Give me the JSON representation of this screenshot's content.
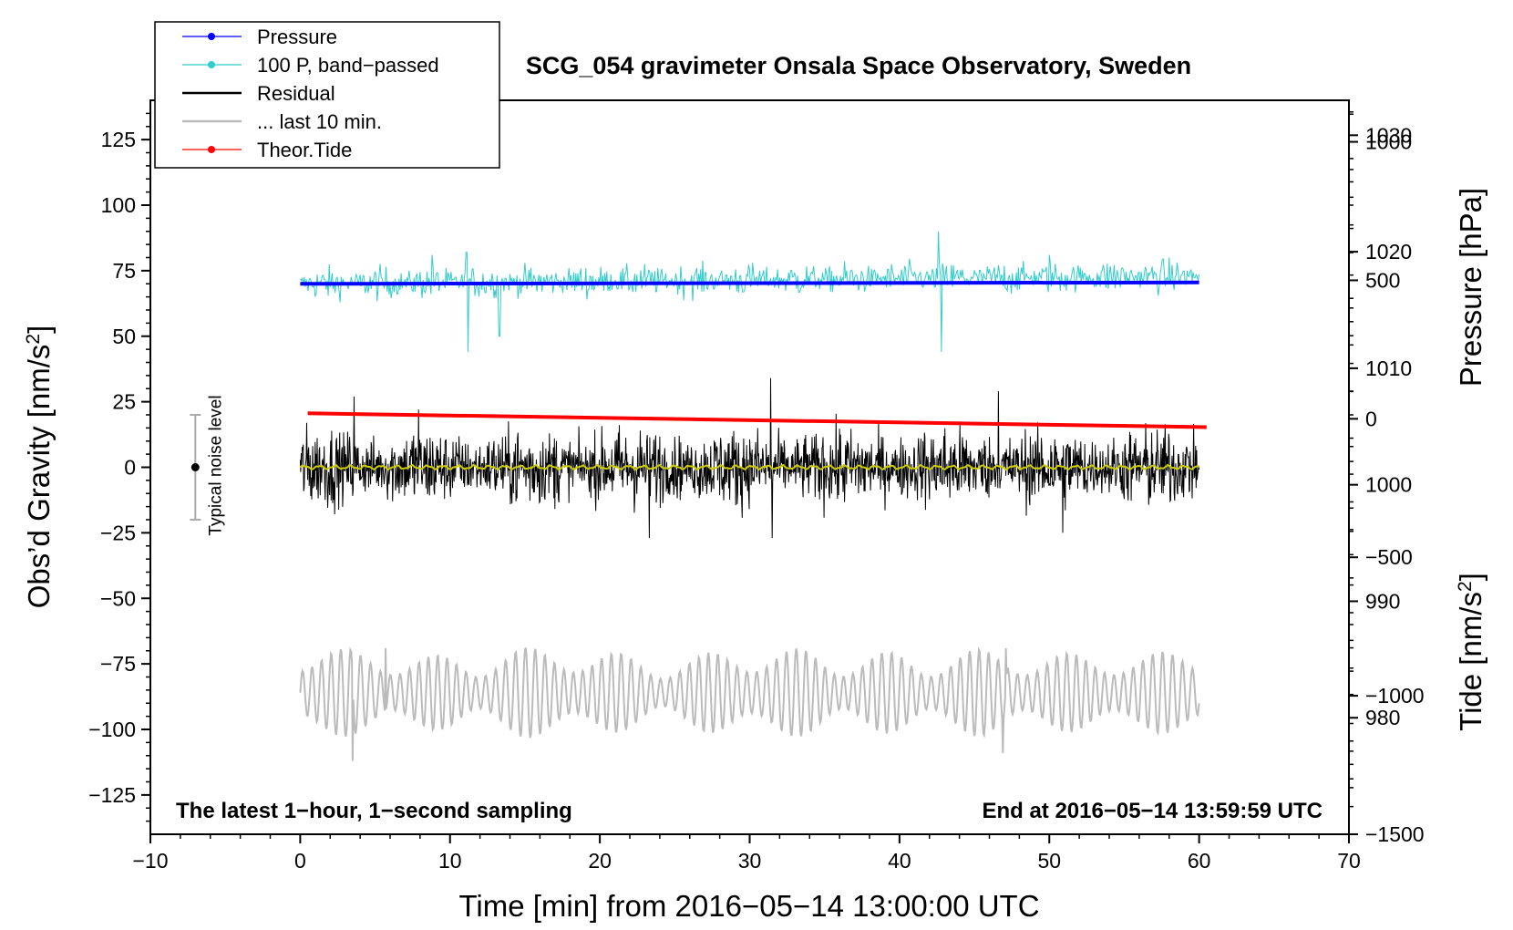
{
  "chart_data": {
    "type": "line",
    "title": "SCG_054 gravimeter Onsala Space Observatory, Sweden",
    "xlabel": "Time [min] from 2016−05−14 13:00:00 UTC",
    "ylabel_left_main": "Obs’d Gravity [nm/s",
    "ylabel_left_sup": "2",
    "ylabel_left_end": "]",
    "ylabel_right_top": "Pressure [hPa]",
    "ylabel_right_bottom_main": "Tide [nm/s",
    "ylabel_right_bottom_sup": "2",
    "ylabel_right_bottom_end": "]",
    "xlim": [
      -10,
      70
    ],
    "ylim_left": [
      -140,
      140
    ],
    "ylim_pressure": [
      970,
      1033
    ],
    "ylim_tide": [
      -1500,
      1150
    ],
    "x_ticks": [
      -10,
      0,
      10,
      20,
      30,
      40,
      50,
      60,
      70
    ],
    "x_tick_labels": [
      "−10",
      "0",
      "10",
      "20",
      "30",
      "40",
      "50",
      "60",
      "70"
    ],
    "y_left_ticks": [
      125,
      100,
      75,
      50,
      25,
      0,
      -25,
      -50,
      -75,
      -100,
      -125
    ],
    "y_left_tick_labels": [
      "125",
      "100",
      "75",
      "50",
      "25",
      "0",
      "−25",
      "−50",
      "−75",
      "−100",
      "−125"
    ],
    "pressure_ticks": [
      1030,
      1020,
      1010,
      1000,
      990,
      980
    ],
    "pressure_tick_labels": [
      "1030",
      "1020",
      "1010",
      "1000",
      "990",
      "980"
    ],
    "tide_ticks": [
      1000,
      500,
      0,
      -500,
      -1000,
      -1500
    ],
    "tide_tick_labels": [
      "1000",
      "500",
      "0",
      "−500",
      "−1000",
      "−1500"
    ],
    "annotation_left": "The latest 1−hour, 1−second sampling",
    "annotation_right": "End at 2016−05−14 13:59:59 UTC",
    "noise_bar": {
      "label": "Typical noise level",
      "x": -7,
      "center": 0,
      "half_range": 20
    },
    "legend": [
      {
        "label": "Pressure",
        "color": "#0000ff",
        "marker": true
      },
      {
        "label": "100 P, band−passed",
        "color": "#33cccc",
        "marker": true
      },
      {
        "label": "Residual",
        "color": "#000000",
        "marker": false
      },
      {
        "label": "... last 10 min.",
        "color": "#bbbbbb",
        "marker": false
      },
      {
        "label": "Theor.Tide",
        "color": "#ff0000",
        "marker": true
      }
    ],
    "series": [
      {
        "name": "Pressure",
        "color": "#0000ff",
        "axis": "left",
        "x": [
          0,
          60
        ],
        "values": [
          70,
          70.5
        ]
      },
      {
        "name": "100 P, band-passed",
        "color": "#33cccc",
        "axis": "left",
        "x_range": [
          0,
          60
        ],
        "baseline": 70,
        "amplitude": 6,
        "spikes": [
          [
            11.2,
            -26
          ],
          [
            13.3,
            -20
          ],
          [
            42.6,
            20
          ],
          [
            42.8,
            -26
          ],
          [
            11.1,
            12
          ],
          [
            8.8,
            11
          ],
          [
            50,
            11
          ]
        ]
      },
      {
        "name": "Residual",
        "color": "#000000",
        "axis": "left",
        "x_range": [
          0,
          60
        ],
        "baseline": 0,
        "amplitude": 9,
        "spikes": [
          [
            31.4,
            34
          ],
          [
            31.5,
            -27
          ],
          [
            23.3,
            -27
          ],
          [
            3.6,
            27
          ],
          [
            46.6,
            29
          ],
          [
            50.9,
            -25
          ],
          [
            7.9,
            22
          ]
        ]
      },
      {
        "name": "Residual smoothed",
        "color": "#cccc00",
        "axis": "left",
        "x_range": [
          0,
          60
        ],
        "baseline": 0,
        "amplitude": 0.6
      },
      {
        "name": "... last 10 min.",
        "color": "#bbbbbb",
        "axis": "left",
        "x_range": [
          0,
          60
        ],
        "baseline": -86,
        "amplitude": 10,
        "extremes": [
          [
            3.5,
            -112
          ],
          [
            5.7,
            -69
          ],
          [
            46.9,
            -109
          ],
          [
            47.1,
            -69
          ]
        ]
      },
      {
        "name": "Theor.Tide",
        "color": "#ff0000",
        "axis": "tide",
        "x": [
          0.5,
          60.5
        ],
        "values": [
          20,
          -30
        ]
      }
    ]
  }
}
